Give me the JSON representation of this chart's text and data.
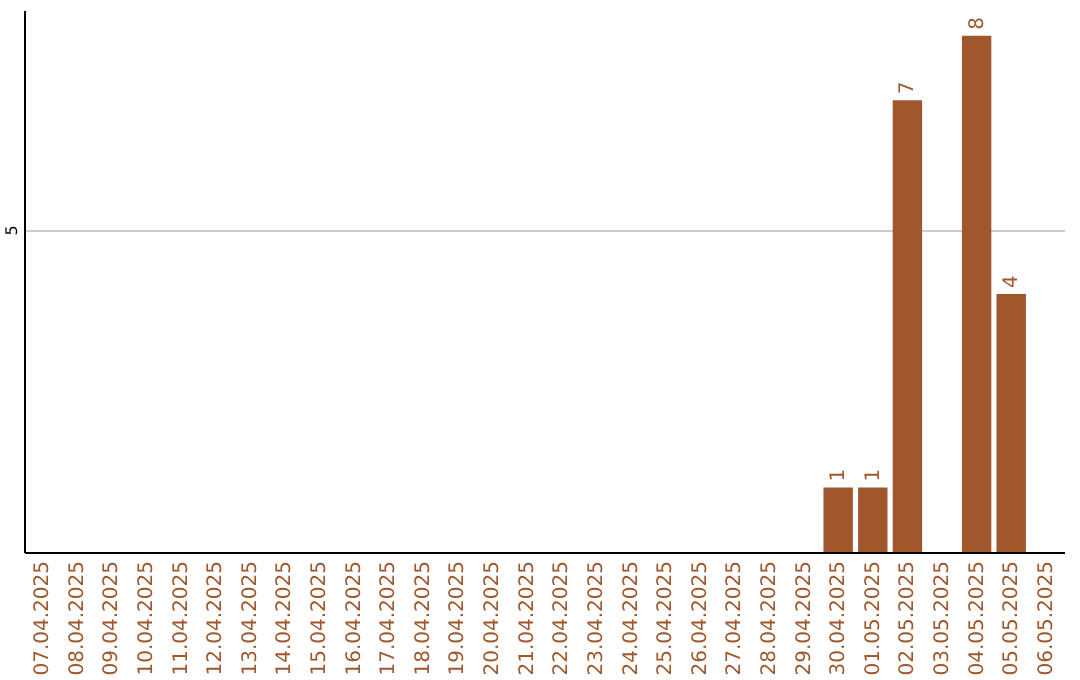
{
  "chart_data": {
    "type": "bar",
    "categories": [
      "07.04.2025",
      "08.04.2025",
      "09.04.2025",
      "10.04.2025",
      "11.04.2025",
      "12.04.2025",
      "13.04.2025",
      "14.04.2025",
      "15.04.2025",
      "16.04.2025",
      "17.04.2025",
      "18.04.2025",
      "19.04.2025",
      "20.04.2025",
      "21.04.2025",
      "22.04.2025",
      "23.04.2025",
      "24.04.2025",
      "25.04.2025",
      "26.04.2025",
      "27.04.2025",
      "28.04.2025",
      "29.04.2025",
      "30.04.2025",
      "01.05.2025",
      "02.05.2025",
      "03.05.2025",
      "04.05.2025",
      "05.05.2025",
      "06.05.2025"
    ],
    "values": [
      null,
      null,
      null,
      null,
      null,
      null,
      null,
      null,
      null,
      null,
      null,
      null,
      null,
      null,
      null,
      null,
      null,
      null,
      null,
      null,
      null,
      null,
      null,
      1,
      1,
      7,
      null,
      8,
      4,
      null
    ],
    "color": "#a0572b",
    "ylim": [
      0,
      8.4
    ],
    "yticks": [
      5
    ],
    "grid": "y",
    "data_labels": true
  }
}
